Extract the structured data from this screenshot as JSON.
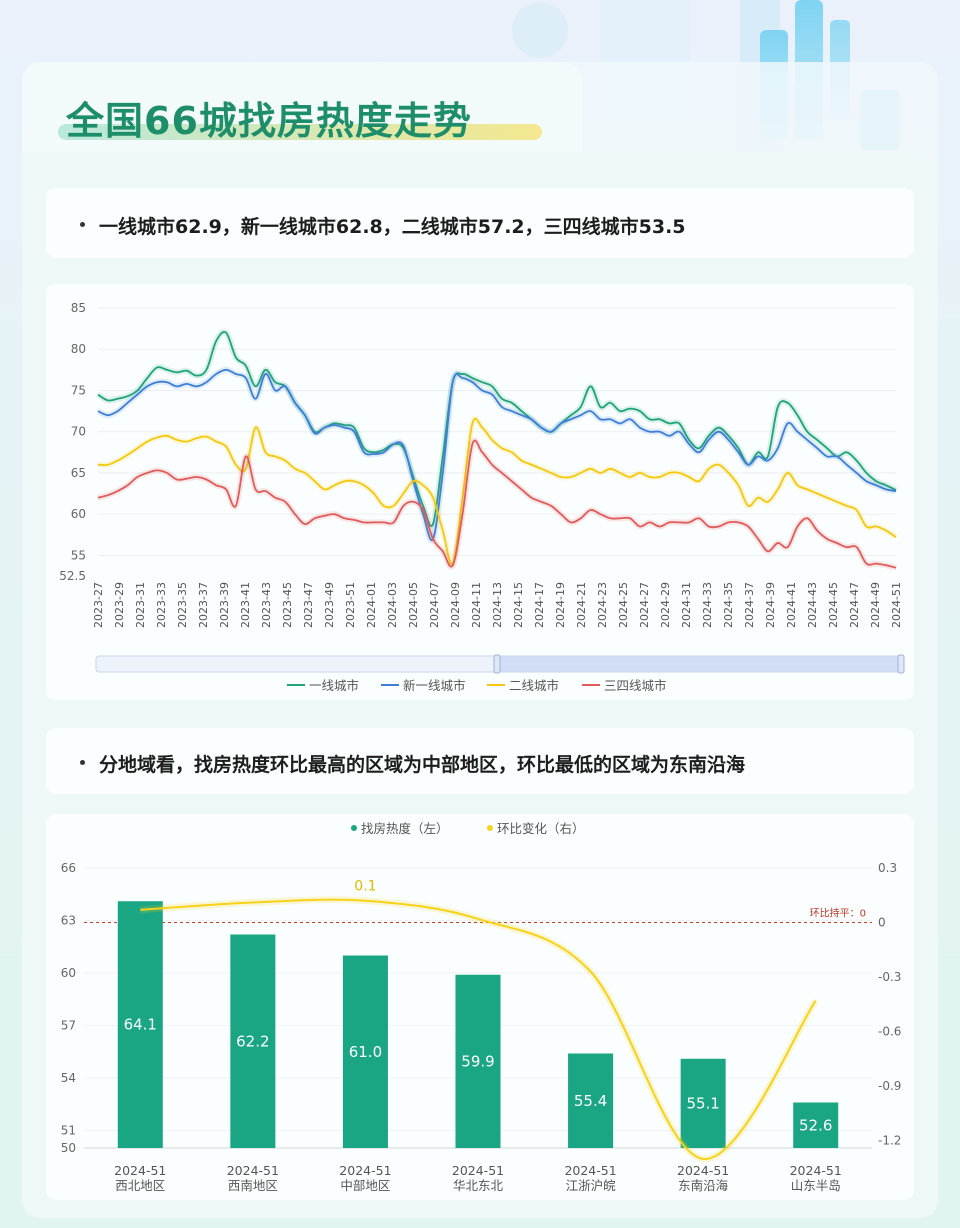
{
  "title": "全国66城找房热度走势",
  "bullet1": "一线城市62.9，新一线城市62.8，二线城市57.2，三四线城市53.5",
  "bullet2": "分地域看，找房热度环比最高的区域为中部地区，环比最低的区域为东南沿海",
  "colors": {
    "tier1": "#1fa37a",
    "newtier1": "#3e7fd6",
    "tier2": "#f3c80f",
    "tier34": "#e05b5b",
    "bar": "#1aa583",
    "ratio": "#f6d21a",
    "refline": "#c0392b"
  },
  "chart_data": [
    {
      "type": "line",
      "ylim": [
        52.5,
        85
      ],
      "yticks": [
        85,
        80,
        75,
        70,
        65,
        60,
        55,
        52.5
      ],
      "x_ticks": [
        "2023-27",
        "2023-29",
        "2023-31",
        "2023-33",
        "2023-35",
        "2023-37",
        "2023-39",
        "2023-41",
        "2023-43",
        "2023-45",
        "2023-47",
        "2023-49",
        "2023-51",
        "2024-01",
        "2024-03",
        "2024-05",
        "2024-07",
        "2024-09",
        "2024-11",
        "2024-13",
        "2024-15",
        "2024-17",
        "2024-19",
        "2024-21",
        "2024-23",
        "2024-25",
        "2024-27",
        "2024-29",
        "2024-31",
        "2024-33",
        "2024-35",
        "2024-37",
        "2024-39",
        "2024-41",
        "2024-43",
        "2024-45",
        "2024-47",
        "2024-49",
        "2024-51"
      ],
      "series": [
        {
          "name": "一线城市",
          "values": [
            74.5,
            73.8,
            74,
            74.3,
            75,
            76.5,
            77.8,
            77.5,
            77.2,
            77.4,
            76.8,
            77.5,
            81,
            82,
            79,
            78,
            75.5,
            77.5,
            76,
            75.5,
            73.5,
            72,
            70,
            70.5,
            71,
            70.8,
            70.5,
            68,
            67.5,
            67.8,
            68.5,
            68,
            64.5,
            61,
            58.8,
            67,
            76,
            77,
            76.5,
            76,
            75.5,
            74,
            73.5,
            72.5,
            71.5,
            70.5,
            70,
            71,
            72,
            73,
            75.5,
            73,
            73.5,
            72.5,
            72.8,
            72.5,
            71.5,
            71.5,
            71,
            71,
            69,
            68,
            69.5,
            70.5,
            69.5,
            68,
            66,
            67.5,
            67,
            73,
            73.5,
            72,
            70,
            69,
            68,
            67,
            67.5,
            66.5,
            65,
            64,
            63.5,
            62.9
          ]
        },
        {
          "name": "新一线城市",
          "values": [
            72.5,
            72,
            72.5,
            73.5,
            74.5,
            75.5,
            76,
            76,
            75.5,
            75.8,
            75.5,
            76,
            77,
            77.5,
            77,
            76.5,
            74,
            77,
            75,
            75.5,
            73.5,
            72,
            69.8,
            70.5,
            70.8,
            70.5,
            70,
            67.5,
            67.3,
            67.5,
            68.5,
            68.3,
            64,
            60,
            57,
            65,
            76,
            76.5,
            76,
            75,
            74.5,
            73,
            72.5,
            72,
            71.5,
            70.5,
            70,
            71,
            71.5,
            72,
            72.5,
            71.5,
            71.5,
            71,
            71.5,
            70.5,
            70,
            70,
            69.5,
            70,
            68.5,
            67.5,
            69,
            70,
            69,
            67.5,
            66,
            67,
            66.5,
            68,
            71,
            70,
            69,
            68,
            67,
            67,
            66,
            65,
            64,
            63.5,
            63,
            62.8
          ]
        },
        {
          "name": "二线城市",
          "values": [
            66,
            66,
            66.5,
            67.2,
            68,
            68.8,
            69.3,
            69.5,
            69,
            68.8,
            69.2,
            69.4,
            68.8,
            68.2,
            66,
            65.5,
            70.5,
            67.5,
            67,
            66.5,
            65.5,
            65,
            64,
            63,
            63.5,
            64,
            64,
            63.5,
            62.5,
            61,
            61,
            62.5,
            64,
            63.5,
            62,
            58,
            54,
            62,
            71,
            70.5,
            69,
            68,
            67.5,
            66.5,
            66,
            65.5,
            65,
            64.5,
            64.5,
            65,
            65.5,
            65,
            65.5,
            65,
            64.5,
            65,
            64.5,
            64.5,
            65,
            65,
            64.5,
            64,
            65.5,
            66,
            65,
            63.5,
            61,
            62,
            61.5,
            63,
            65,
            63.5,
            63,
            62.5,
            62,
            61.5,
            61,
            60.5,
            58.5,
            58.5,
            58,
            57.2
          ]
        },
        {
          "name": "三四线城市",
          "values": [
            62,
            62.3,
            62.8,
            63.5,
            64.5,
            65,
            65.3,
            65,
            64.2,
            64.3,
            64.5,
            64.2,
            63.5,
            63,
            61,
            67,
            63,
            62.8,
            62,
            61.5,
            60,
            58.8,
            59.5,
            59.8,
            60,
            59.5,
            59.3,
            59,
            59,
            59,
            59,
            61,
            61.5,
            60.5,
            57,
            55.5,
            53.8,
            60,
            68.5,
            67.5,
            66,
            65,
            64,
            63,
            62,
            61.5,
            61,
            60,
            59,
            59.5,
            60.5,
            60,
            59.5,
            59.5,
            59.5,
            58.5,
            59,
            58.5,
            59,
            59,
            59,
            59.5,
            58.5,
            58.5,
            59,
            59,
            58.5,
            57,
            55.5,
            56.5,
            56,
            58.5,
            59.5,
            58,
            57,
            56.5,
            56,
            56,
            54,
            54,
            53.8,
            53.5
          ]
        }
      ]
    },
    {
      "type": "bar",
      "categories": [
        "2024-51\n西北地区",
        "2024-51\n西南地区",
        "2024-51\n中部地区",
        "2024-51\n华北东北",
        "2024-51\n江浙沪皖",
        "2024-51\n东南沿海",
        "2024-51\n山东半岛"
      ],
      "series": [
        {
          "name": "找房热度（左）",
          "values": [
            64.1,
            62.2,
            61.0,
            59.9,
            55.4,
            55.1,
            52.6
          ]
        },
        {
          "name": "环比变化（右）",
          "values": [
            0.07,
            0.11,
            0.12,
            0.02,
            -0.27,
            -1.3,
            -0.43
          ]
        }
      ],
      "left_axis": {
        "ylim": [
          50,
          66
        ],
        "ticks": [
          66,
          63,
          60,
          57,
          54,
          51,
          50
        ]
      },
      "right_axis": {
        "ylim": [
          -1.24,
          0.3
        ],
        "ticks": [
          "0.3",
          "0",
          "-0.3",
          "-0.6",
          "-0.9",
          "-1.2"
        ]
      },
      "ratio_label": "0.1",
      "reference_line": {
        "value": 0,
        "label": "环比持平：0"
      }
    }
  ]
}
